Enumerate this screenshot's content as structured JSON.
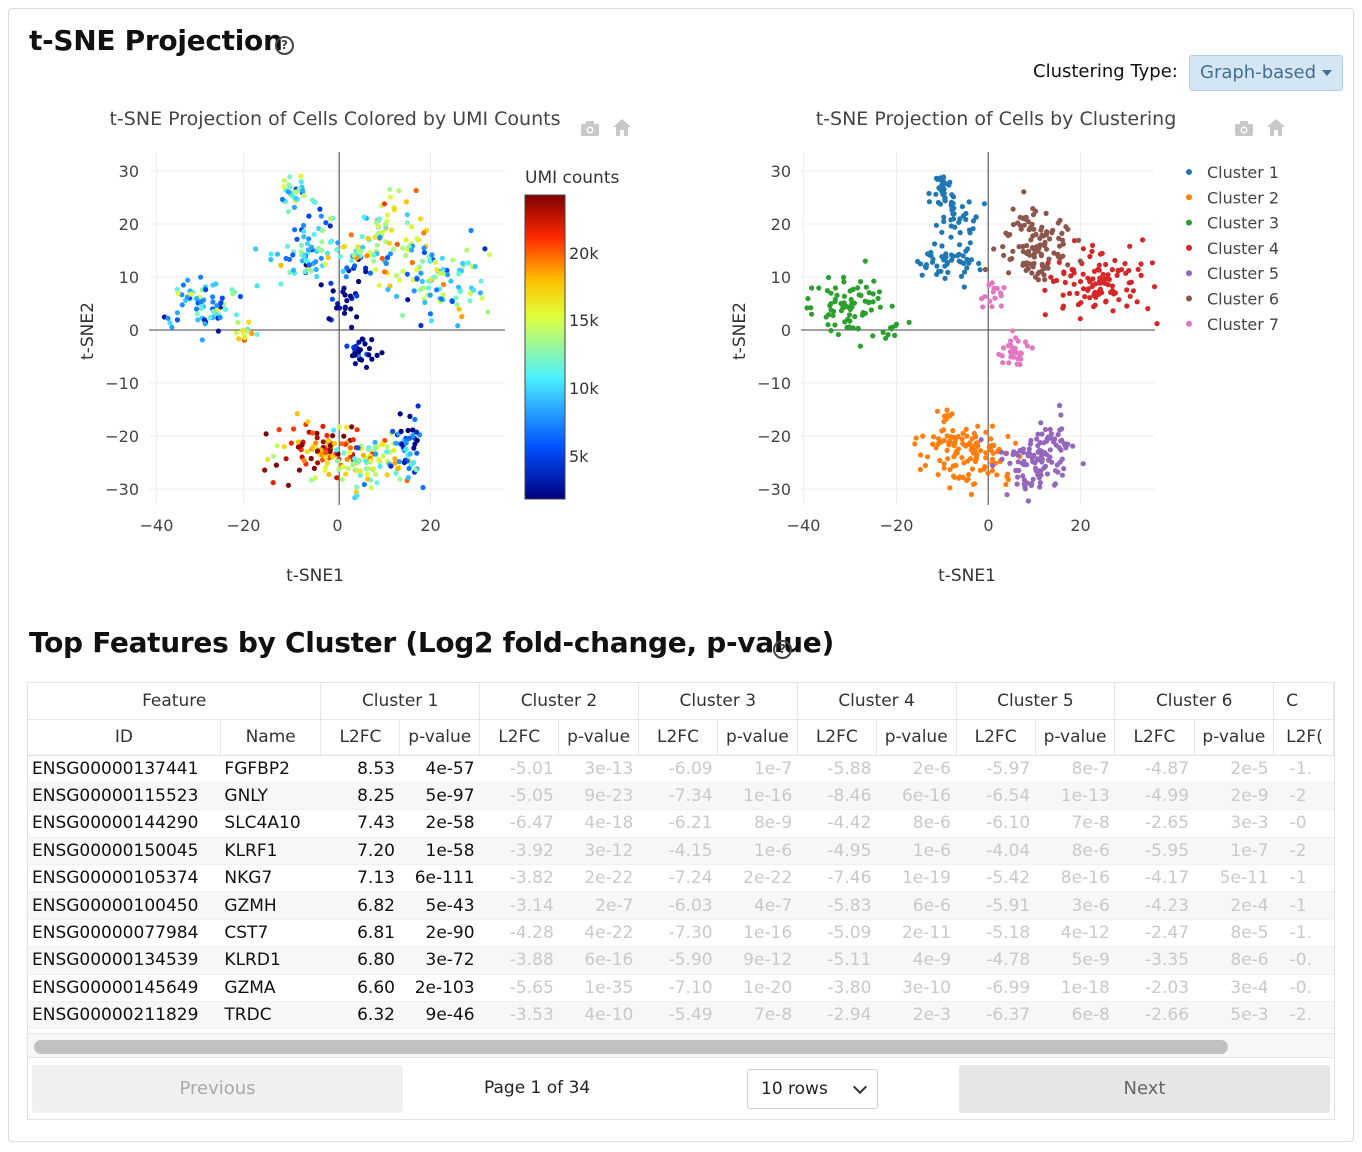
{
  "section1": {
    "title": "t-SNE Projection",
    "help": "?"
  },
  "clustering": {
    "label": "Clustering Type:",
    "selected": "Graph-based"
  },
  "plot_left": {
    "title": "t-SNE Projection of Cells Colored by UMI Counts",
    "colorbar_title": "UMI counts",
    "colorbar_ticks": [
      "20k",
      "15k",
      "10k",
      "5k"
    ],
    "colorscale": [
      "#00007f",
      "#0060ff",
      "#4cf0ff",
      "#c0ff3c",
      "#ffd000",
      "#ff4b00",
      "#7f0000"
    ]
  },
  "plot_right": {
    "title": "t-SNE Projection of Cells by Clustering"
  },
  "chart_data": [
    {
      "type": "scatter",
      "title": "t-SNE Projection of Cells Colored by UMI Counts",
      "xlabel": "t-SNE1",
      "ylabel": "t-SNE2",
      "xlim": [
        -40,
        36
      ],
      "ylim": [
        -34,
        33
      ],
      "x_ticks": [
        "−40",
        "−20",
        "0",
        "20"
      ],
      "y_ticks": [
        "30",
        "20",
        "10",
        "0",
        "−10",
        "−20",
        "−30"
      ],
      "color_by": "UMI counts",
      "groups": [
        {
          "x": -10,
          "y": 26,
          "sx": 1.5,
          "sy": 2,
          "n": 30,
          "umi": 11000
        },
        {
          "x": -5,
          "y": 19,
          "sx": 2.5,
          "sy": 3,
          "n": 25,
          "umi": 9000
        },
        {
          "x": -8,
          "y": 13,
          "sx": 4,
          "sy": 2,
          "n": 45,
          "umi": 10500
        },
        {
          "x": 3,
          "y": 12,
          "sx": 2,
          "sy": 2,
          "n": 12,
          "umi": 7000
        },
        {
          "x": 1,
          "y": 6,
          "sx": 2,
          "sy": 2.5,
          "n": 25,
          "umi": 3500
        },
        {
          "x": 10,
          "y": 17,
          "sx": 5,
          "sy": 4,
          "n": 90,
          "umi": 14000
        },
        {
          "x": 22,
          "y": 9,
          "sx": 5,
          "sy": 3.5,
          "n": 90,
          "umi": 11000
        },
        {
          "x": -30,
          "y": 5,
          "sx": 4,
          "sy": 2.5,
          "n": 70,
          "umi": 9000
        },
        {
          "x": -21,
          "y": 0,
          "sx": 1.5,
          "sy": 1,
          "n": 12,
          "umi": 15000
        },
        {
          "x": 5,
          "y": -4,
          "sx": 1.5,
          "sy": 1.5,
          "n": 30,
          "umi": 2000
        },
        {
          "x": -4,
          "y": -23,
          "sx": 5,
          "sy": 3,
          "n": 90,
          "umi": 20000
        },
        {
          "x": 7,
          "y": -25,
          "sx": 5,
          "sy": 3,
          "n": 90,
          "umi": 14000
        },
        {
          "x": 15,
          "y": -21,
          "sx": 2,
          "sy": 3,
          "n": 40,
          "umi": 5000
        }
      ]
    },
    {
      "type": "scatter",
      "title": "t-SNE Projection of Cells by Clustering",
      "xlabel": "t-SNE1",
      "ylabel": "t-SNE2",
      "xlim": [
        -40,
        36
      ],
      "ylim": [
        -34,
        33
      ],
      "x_ticks": [
        "−40",
        "−20",
        "0",
        "20"
      ],
      "y_ticks": [
        "30",
        "20",
        "10",
        "0",
        "−10",
        "−20",
        "−30"
      ],
      "legend_position": "top-right",
      "series": [
        {
          "name": "Cluster 1",
          "color": "#1f77b4",
          "groups": [
            {
              "x": -10,
              "y": 26,
              "sx": 1.5,
              "sy": 2,
              "n": 35
            },
            {
              "x": -6,
              "y": 20,
              "sx": 2.5,
              "sy": 3,
              "n": 30
            },
            {
              "x": -9,
              "y": 13,
              "sx": 3.5,
              "sy": 2,
              "n": 45
            }
          ]
        },
        {
          "name": "Cluster 2",
          "color": "#ff7f0e",
          "groups": [
            {
              "x": -4,
              "y": -23,
              "sx": 5,
              "sy": 3,
              "n": 120
            },
            {
              "x": -9,
              "y": -16,
              "sx": 1,
              "sy": 1.5,
              "n": 8
            }
          ]
        },
        {
          "name": "Cluster 3",
          "color": "#2ca02c",
          "groups": [
            {
              "x": -30,
              "y": 5,
              "sx": 4,
              "sy": 2.5,
              "n": 75
            },
            {
              "x": -21,
              "y": 0,
              "sx": 1.5,
              "sy": 1,
              "n": 12
            }
          ]
        },
        {
          "name": "Cluster 4",
          "color": "#d62728",
          "groups": [
            {
              "x": 24,
              "y": 9,
              "sx": 5,
              "sy": 3.5,
              "n": 110
            }
          ]
        },
        {
          "name": "Cluster 5",
          "color": "#9467bd",
          "groups": [
            {
              "x": 10,
              "y": -25,
              "sx": 4,
              "sy": 3,
              "n": 90
            },
            {
              "x": 15,
              "y": -20,
              "sx": 1.5,
              "sy": 2.5,
              "n": 25
            }
          ]
        },
        {
          "name": "Cluster 6",
          "color": "#8c564b",
          "groups": [
            {
              "x": 10,
              "y": 16,
              "sx": 4,
              "sy": 3.5,
              "n": 110
            }
          ]
        },
        {
          "name": "Cluster 7",
          "color": "#e377c2",
          "groups": [
            {
              "x": 6,
              "y": -4,
              "sx": 1.5,
              "sy": 1.5,
              "n": 30
            },
            {
              "x": 1,
              "y": 6,
              "sx": 1.5,
              "sy": 1.5,
              "n": 15
            }
          ]
        }
      ]
    }
  ],
  "section2": {
    "title": "Top Features by Cluster (Log2 fold-change, p-value)",
    "help": "?"
  },
  "table": {
    "group_headers": [
      "Feature",
      "Cluster 1",
      "Cluster 2",
      "Cluster 3",
      "Cluster 4",
      "Cluster 5",
      "Cluster 6",
      "C"
    ],
    "sub_headers": [
      "ID",
      "Name",
      "L2FC",
      "p-value",
      "L2FC",
      "p-value",
      "L2FC",
      "p-value",
      "L2FC",
      "p-value",
      "L2FC",
      "p-value",
      "L2FC",
      "p-value",
      "L2F("
    ],
    "rows": [
      [
        "ENSG00000137441",
        "FGFBP2",
        "8.53",
        "4e-57",
        "-5.01",
        "3e-13",
        "-6.09",
        "1e-7",
        "-5.88",
        "2e-6",
        "-5.97",
        "8e-7",
        "-4.87",
        "2e-5",
        "-1."
      ],
      [
        "ENSG00000115523",
        "GNLY",
        "8.25",
        "5e-97",
        "-5.05",
        "9e-23",
        "-7.34",
        "1e-16",
        "-8.46",
        "6e-16",
        "-6.54",
        "1e-13",
        "-4.99",
        "2e-9",
        "-2"
      ],
      [
        "ENSG00000144290",
        "SLC4A10",
        "7.43",
        "2e-58",
        "-6.47",
        "4e-18",
        "-6.21",
        "8e-9",
        "-4.42",
        "8e-6",
        "-6.10",
        "7e-8",
        "-2.65",
        "3e-3",
        "-0"
      ],
      [
        "ENSG00000150045",
        "KLRF1",
        "7.20",
        "1e-58",
        "-3.92",
        "3e-12",
        "-4.15",
        "1e-6",
        "-4.95",
        "1e-6",
        "-4.04",
        "8e-6",
        "-5.95",
        "1e-7",
        "-2"
      ],
      [
        "ENSG00000105374",
        "NKG7",
        "7.13",
        "6e-111",
        "-3.82",
        "2e-22",
        "-7.24",
        "2e-22",
        "-7.46",
        "1e-19",
        "-5.42",
        "8e-16",
        "-4.17",
        "5e-11",
        "-1"
      ],
      [
        "ENSG00000100450",
        "GZMH",
        "6.82",
        "5e-43",
        "-3.14",
        "2e-7",
        "-6.03",
        "4e-7",
        "-5.83",
        "6e-6",
        "-5.91",
        "3e-6",
        "-4.23",
        "2e-4",
        "-1"
      ],
      [
        "ENSG00000077984",
        "CST7",
        "6.81",
        "2e-90",
        "-4.28",
        "4e-22",
        "-7.30",
        "1e-16",
        "-5.09",
        "2e-11",
        "-5.18",
        "4e-12",
        "-2.47",
        "8e-5",
        "-1."
      ],
      [
        "ENSG00000134539",
        "KLRD1",
        "6.80",
        "3e-72",
        "-3.88",
        "6e-16",
        "-5.90",
        "9e-12",
        "-5.11",
        "4e-9",
        "-4.78",
        "5e-9",
        "-3.35",
        "8e-6",
        "-0."
      ],
      [
        "ENSG00000145649",
        "GZMA",
        "6.60",
        "2e-103",
        "-5.65",
        "1e-35",
        "-7.10",
        "1e-20",
        "-3.80",
        "3e-10",
        "-6.99",
        "1e-18",
        "-2.03",
        "3e-4",
        "-0."
      ],
      [
        "ENSG00000211829",
        "TRDC",
        "6.32",
        "9e-46",
        "-3.53",
        "4e-10",
        "-5.49",
        "7e-8",
        "-2.94",
        "2e-3",
        "-6.37",
        "6e-8",
        "-2.66",
        "5e-3",
        "-2."
      ]
    ]
  },
  "pager": {
    "previous": "Previous",
    "page_info": "Page 1 of 34",
    "rows": "10 rows",
    "next": "Next"
  }
}
